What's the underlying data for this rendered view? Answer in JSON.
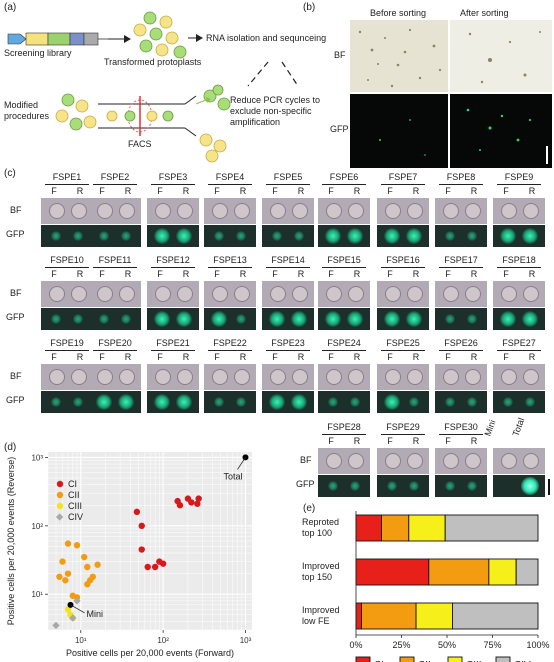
{
  "panels": {
    "a": "(a)",
    "b": "(b)",
    "c": "(c)",
    "d": "(d)",
    "e": "(e)"
  },
  "panel_a": {
    "screening_library": "Screening library",
    "transformed_protoplasts": "Transformed protoplasts",
    "rna": "RNA isolation and sequnceing",
    "modified": "Modified\nprocedures",
    "facs": "FACS",
    "reduce": "Reduce PCR cycles to\nexclude non-specific\namplification"
  },
  "panel_b": {
    "before": "Before sorting",
    "after": "After sorting",
    "bf": "BF",
    "gfp": "GFP"
  },
  "panel_c": {
    "row_bf": "BF",
    "row_gfp": "GFP",
    "f": "F",
    "r": "R",
    "samples": [
      "FSPE1",
      "FSPE2",
      "FSPE3",
      "FSPE4",
      "FSPE5",
      "FSPE6",
      "FSPE7",
      "FSPE8",
      "FSPE9",
      "FSPE10",
      "FSPE11",
      "FSPE12",
      "FSPE13",
      "FSPE14",
      "FSPE15",
      "FSPE16",
      "FSPE17",
      "FSPE18",
      "FSPE19",
      "FSPE20",
      "FSPE21",
      "FSPE22",
      "FSPE23",
      "FSPE24",
      "FSPE25",
      "FSPE26",
      "FSPE27",
      "FSPE28",
      "FSPE29",
      "FSPE30"
    ],
    "mini": "Mini",
    "total": "Total"
  },
  "chart_data": [
    {
      "type": "scatter",
      "panel": "d",
      "xlabel": "Positive cells per 20,000 events (Forward)",
      "ylabel": "Positive cells per 20,000 events (Reverse)",
      "xscale": "log",
      "yscale": "log",
      "xlim": [
        4,
        1200
      ],
      "ylim": [
        3,
        1200
      ],
      "xticks": [
        "10¹",
        "10²",
        "10³"
      ],
      "yticks": [
        "10¹",
        "10²",
        "10³"
      ],
      "grid": true,
      "legend_position": "top-left",
      "series": [
        {
          "name": "CI",
          "color": "#d7191c",
          "points": [
            [
              150,
              230
            ],
            [
              160,
              200
            ],
            [
              200,
              250
            ],
            [
              220,
              220
            ],
            [
              260,
              210
            ],
            [
              270,
              250
            ],
            [
              48,
              160
            ],
            [
              55,
              100
            ],
            [
              55,
              45
            ],
            [
              65,
              25
            ],
            [
              80,
              25
            ],
            [
              90,
              30
            ],
            [
              100,
              28
            ]
          ]
        },
        {
          "name": "CII",
          "color": "#f39c12",
          "points": [
            [
              6,
              30
            ],
            [
              5.5,
              18
            ],
            [
              6.5,
              16
            ],
            [
              7,
              20
            ],
            [
              7,
              55
            ],
            [
              9,
              52
            ],
            [
              11,
              35
            ],
            [
              12,
              25
            ],
            [
              13,
              16
            ],
            [
              12,
              14
            ],
            [
              14,
              18
            ],
            [
              16,
              27
            ],
            [
              8,
              9.5
            ],
            [
              9,
              9
            ]
          ]
        },
        {
          "name": "CIII",
          "color": "#f2e41c",
          "points": [
            [
              7,
              6
            ],
            [
              7.5,
              5
            ],
            [
              8,
              4.5
            ]
          ]
        },
        {
          "name": "CIV",
          "color": "#a8a8a8",
          "points": [
            [
              5,
              3.5
            ],
            [
              9,
              8
            ],
            [
              8,
              4.5
            ]
          ]
        },
        {
          "name": "Mini",
          "color": "#000000",
          "points": [
            [
              7.5,
              7
            ]
          ]
        },
        {
          "name": "Total",
          "color": "#000000",
          "points": [
            [
              1000,
              1000
            ]
          ]
        }
      ],
      "annotations": [
        "Total",
        "Mini"
      ]
    },
    {
      "type": "bar",
      "panel": "e",
      "orientation": "horizontal",
      "stacked": true,
      "categories": [
        "Reproted top 100",
        "Improved top 150",
        "Improved low FE"
      ],
      "category_labels": [
        [
          "Reproted",
          "top 100"
        ],
        [
          "Improved",
          "top 150"
        ],
        [
          "Improved",
          "low FE"
        ]
      ],
      "series": [
        {
          "name": "CI",
          "color": "#e8201a",
          "values": [
            14,
            40,
            3
          ]
        },
        {
          "name": "CII",
          "color": "#f39c12",
          "values": [
            15,
            33,
            30
          ]
        },
        {
          "name": "CIII",
          "color": "#f7ef1a",
          "values": [
            20,
            15,
            20
          ]
        },
        {
          "name": "CIV",
          "color": "#bfbfbf",
          "values": [
            51,
            12,
            47
          ]
        }
      ],
      "xticks": [
        "0%",
        "25%",
        "50%",
        "75%",
        "100%"
      ],
      "xlim": [
        0,
        100
      ],
      "legend_position": "bottom"
    }
  ]
}
